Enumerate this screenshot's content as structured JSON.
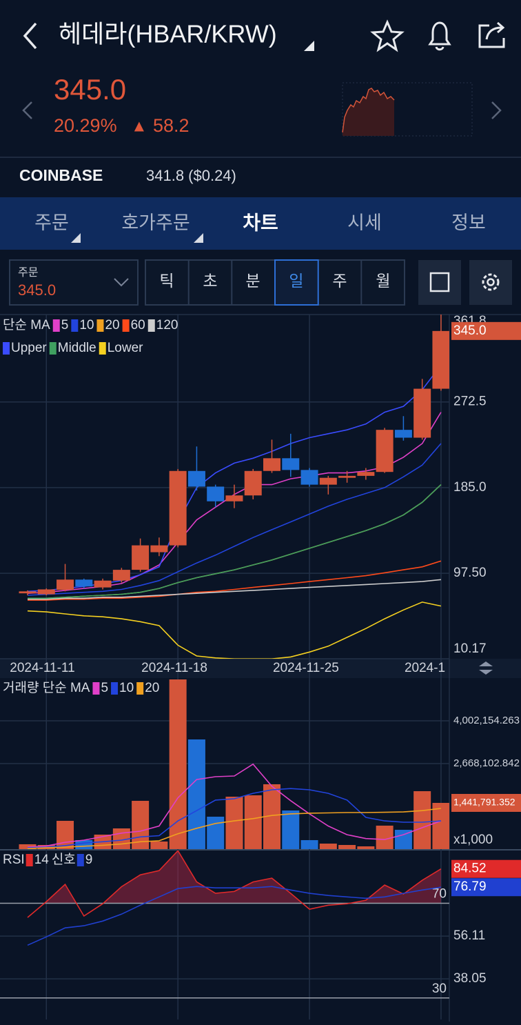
{
  "header": {
    "title": "헤데라(HBAR/KRW)"
  },
  "quote": {
    "price": "345.0",
    "change_rate": "20.29%",
    "change_arrow": "▲",
    "change": "58.2"
  },
  "exchange": {
    "name": "COINBASE",
    "price": "341.8 ($0.24)"
  },
  "tabs": [
    "주문",
    "호가주문",
    "차트",
    "시세",
    "정보"
  ],
  "order": {
    "label": "주문",
    "price": "345.0"
  },
  "periods": [
    "틱",
    "초",
    "분",
    "일",
    "주",
    "월"
  ],
  "chart_data": [
    {
      "type": "candlestick",
      "categories": [
        null,
        "2024-11-11",
        null,
        null,
        null,
        null,
        null,
        null,
        "2024-11-18",
        null,
        null,
        null,
        null,
        null,
        null,
        "2024-11-25",
        null,
        null,
        null,
        null,
        null,
        null,
        "2024-1"
      ],
      "open": [
        77,
        76,
        80.5,
        91,
        83,
        90,
        101,
        119,
        126,
        202,
        186,
        171,
        177,
        202,
        215,
        203,
        188,
        195,
        197,
        201,
        244,
        236,
        286
      ],
      "high": [
        80,
        82,
        107,
        92,
        92,
        103,
        133,
        134,
        204,
        227,
        188,
        188,
        204,
        234,
        240,
        205,
        197,
        202,
        205,
        246,
        258,
        296,
        361.8
      ],
      "low": [
        75,
        75,
        79,
        82,
        81,
        88,
        99,
        115,
        124,
        182,
        165,
        164,
        173,
        200,
        196,
        186,
        178,
        190,
        193,
        200,
        233,
        234,
        284
      ],
      "close": [
        79,
        81,
        91,
        84,
        90,
        101,
        126,
        126,
        202,
        186,
        171,
        177,
        202,
        215,
        203,
        188,
        195,
        197,
        201,
        244,
        236,
        286,
        345
      ],
      "up_color": "#d4553a",
      "down_color": "#1f6fd6",
      "legend_title": "단순 MA",
      "series": [
        {
          "name": "5",
          "color": "#e040c8",
          "values": [
            77,
            78,
            80,
            82,
            84,
            87,
            96,
            106,
            129,
            152,
            165,
            178,
            188,
            188,
            194,
            197,
            200,
            200,
            202,
            206,
            216,
            230,
            262
          ]
        },
        {
          "name": "10",
          "color": "#2244dd",
          "values": [
            75,
            76,
            77,
            78,
            79,
            81,
            85,
            90,
            99,
            108,
            116,
            125,
            134,
            142,
            150,
            158,
            166,
            173,
            179,
            185,
            196,
            208,
            230
          ]
        },
        {
          "name": "20",
          "color": "#f0a020",
          "values": [
            72,
            72,
            73,
            74,
            75,
            76,
            78,
            82,
            88,
            93,
            97,
            101,
            106,
            111,
            117,
            123,
            129,
            135,
            141,
            148,
            157,
            170,
            188
          ]
        },
        {
          "name": "60",
          "color": "#ff4a1a",
          "values": [
            70,
            70,
            71,
            71,
            72,
            72,
            73,
            74,
            76,
            78,
            79,
            81,
            83,
            85,
            87,
            89,
            91,
            93,
            95,
            98,
            101,
            104,
            110
          ]
        },
        {
          "name": "120",
          "color": "#cccccc",
          "values": [
            71,
            71,
            72,
            72,
            73,
            73,
            74,
            75,
            76,
            77,
            78,
            79,
            80,
            81,
            82,
            83,
            84,
            85,
            86,
            87,
            88,
            89,
            91
          ]
        },
        {
          "name": "Upper",
          "color": "#3a4cff",
          "values": [
            79,
            80,
            82,
            84,
            87,
            90,
            96,
            104,
            150,
            185,
            200,
            210,
            215,
            222,
            230,
            236,
            240,
            244,
            250,
            262,
            268,
            285,
            310
          ]
        },
        {
          "name": "Middle",
          "color": "#3fa060",
          "values": [
            72,
            72,
            73,
            74,
            75,
            76,
            78,
            82,
            88,
            93,
            97,
            101,
            106,
            111,
            117,
            123,
            129,
            135,
            141,
            148,
            157,
            170,
            188
          ]
        },
        {
          "name": "Lower",
          "color": "#f5d020",
          "values": [
            59,
            58,
            56,
            54,
            53,
            51,
            48,
            44,
            24,
            13,
            11,
            10,
            10,
            10,
            12,
            17,
            23,
            32,
            41,
            51,
            60,
            68,
            64
          ]
        }
      ],
      "ylim": [
        10.17,
        361.8
      ],
      "yticks": [
        361.8,
        272.5,
        {
          "value": 185,
          "label": "185.0"
        },
        {
          "value": 97.5,
          "label": "97.50"
        },
        10.17
      ],
      "price_tag": {
        "value": 345,
        "label": "345.0"
      },
      "grid": true
    },
    {
      "type": "bar",
      "values": [
        151000,
        129000,
        882000,
        280000,
        452000,
        646000,
        1506000,
        237000,
        5293000,
        3421000,
        1011000,
        1635000,
        1678000,
        2023000,
        1205000,
        280000,
        172000,
        129000,
        86000,
        732000,
        602000,
        1807000,
        1441791.352
      ],
      "legend_title": "거래량 단순 MA",
      "series": [
        {
          "name": "5",
          "color": "#e040c8",
          "values": [
            65000,
            100000,
            210000,
            280000,
            390000,
            500000,
            560000,
            720000,
            1600000,
            2170000,
            2260000,
            2280000,
            2650000,
            1960000,
            1510000,
            1100000,
            720000,
            450000,
            330000,
            300000,
            450000,
            670000,
            880000
          ]
        },
        {
          "name": "10",
          "color": "#2244dd",
          "values": [
            40000,
            60000,
            110000,
            190000,
            230000,
            280000,
            380000,
            420000,
            880000,
            1200000,
            1530000,
            1570000,
            1740000,
            1850000,
            1890000,
            1850000,
            1740000,
            1530000,
            990000,
            880000,
            840000,
            840000,
            880000
          ]
        },
        {
          "name": "20",
          "color": "#f0a020",
          "values": [
            20000,
            40000,
            60000,
            90000,
            120000,
            160000,
            230000,
            260000,
            480000,
            650000,
            800000,
            880000,
            950000,
            1050000,
            1100000,
            1120000,
            1130000,
            1140000,
            1140000,
            1150000,
            1160000,
            1200000,
            1270000
          ]
        }
      ],
      "ylim": [
        0,
        5293000
      ],
      "yticks": [
        {
          "value": 4002154.263,
          "label": "4,002,154.263"
        },
        {
          "value": 2668102.842,
          "label": "2,668,102.842"
        }
      ],
      "price_tag": {
        "value": 1441791.352,
        "label": "1,441,791.352"
      },
      "unit_label": "x1,000",
      "grid": true
    },
    {
      "type": "line",
      "series": [
        {
          "label": "RSI",
          "name": "14",
          "color": "#e02a2a",
          "values": [
            64,
            70.7,
            78,
            64.6,
            69.8,
            77,
            82,
            83.8,
            92.2,
            79,
            74.2,
            75,
            79,
            80.6,
            74.2,
            67.5,
            69.2,
            69.8,
            71.3,
            77.7,
            73.9,
            79.7,
            84.52
          ]
        },
        {
          "label": "신호",
          "name": "9",
          "color": "#2040d0",
          "values": [
            52.3,
            55.8,
            59.6,
            60.5,
            62.5,
            65.4,
            69.2,
            72.7,
            76.2,
            77.1,
            76.5,
            76.5,
            76.5,
            77.1,
            75.6,
            74.2,
            73.3,
            72.7,
            72.1,
            72.7,
            74.2,
            75.6,
            76.79
          ]
        }
      ],
      "ylim": [
        20.9,
        92.3
      ],
      "yticks": [
        56.11,
        38.05
      ],
      "levels": [
        70,
        30
      ],
      "grid": true
    }
  ]
}
